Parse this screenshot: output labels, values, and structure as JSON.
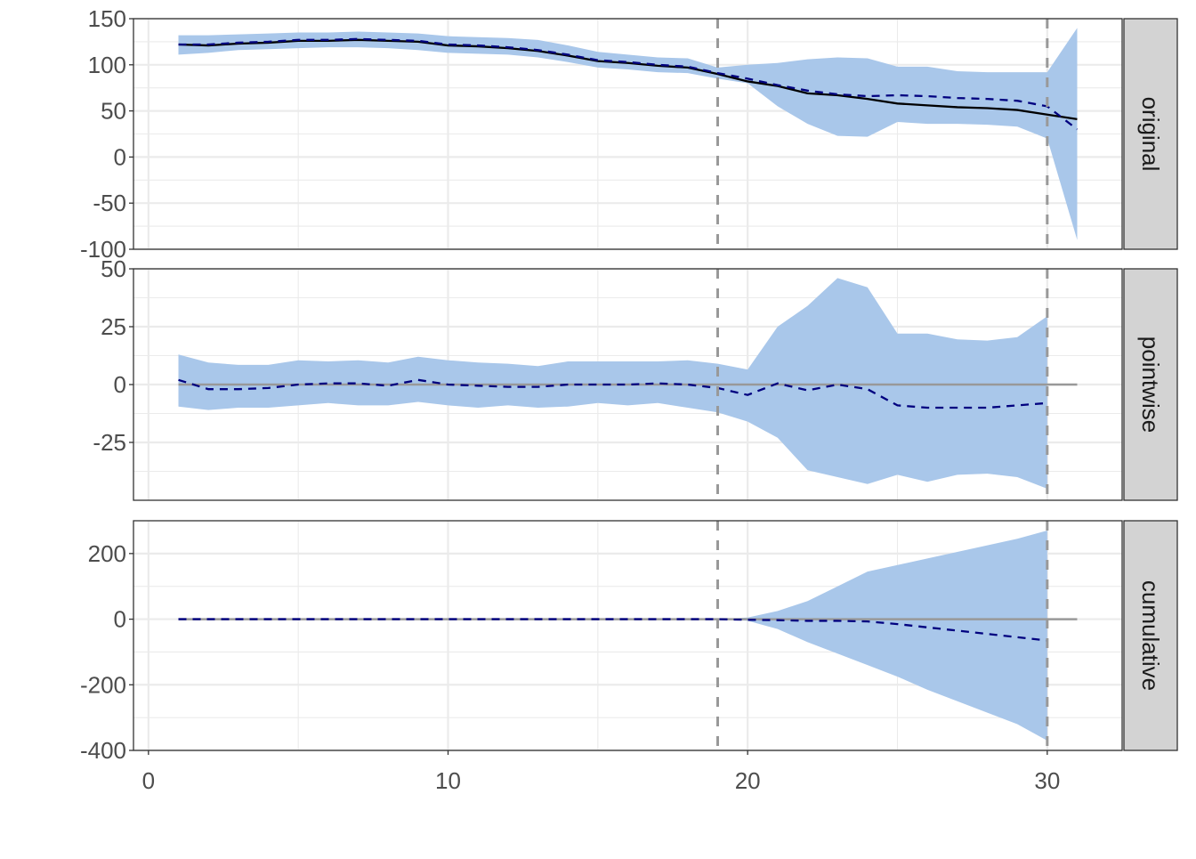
{
  "chart_data": [
    {
      "type": "line",
      "panel": "original",
      "ylim": [
        -100,
        150
      ],
      "yticks": [
        -100,
        -50,
        0,
        50,
        100,
        150
      ],
      "x": [
        1,
        2,
        3,
        4,
        5,
        6,
        7,
        8,
        9,
        10,
        11,
        12,
        13,
        14,
        15,
        16,
        17,
        18,
        19,
        20,
        21,
        22,
        23,
        24,
        25,
        26,
        27,
        28,
        29,
        30,
        31
      ],
      "observed": [
        122,
        121,
        123,
        124,
        126,
        126,
        127,
        126,
        125,
        121,
        120,
        118,
        115,
        110,
        104,
        102,
        99,
        97,
        90,
        82,
        77,
        69,
        67,
        63,
        58,
        56,
        54,
        53,
        51,
        46,
        41
      ],
      "predicted": [
        122,
        122,
        124,
        125,
        127,
        127,
        128,
        127,
        126,
        122,
        121,
        119,
        116,
        111,
        105,
        103,
        100,
        98,
        91,
        85,
        78,
        72,
        68,
        66,
        67,
        66,
        64,
        63,
        61,
        55,
        30
      ],
      "upper": [
        132,
        132,
        133,
        134,
        135,
        135,
        136,
        135,
        134,
        131,
        130,
        129,
        127,
        121,
        114,
        111,
        108,
        107,
        97,
        100,
        102,
        106,
        108,
        107,
        98,
        98,
        93,
        92,
        92,
        92,
        140
      ],
      "lower": [
        111,
        113,
        116,
        117,
        118,
        119,
        119,
        118,
        116,
        113,
        112,
        111,
        108,
        103,
        97,
        95,
        92,
        91,
        85,
        80,
        55,
        36,
        23,
        22,
        38,
        36,
        36,
        35,
        33,
        20,
        -90
      ]
    },
    {
      "type": "line",
      "panel": "pointwise",
      "ylim": [
        -50,
        50
      ],
      "yticks": [
        -25,
        0,
        25,
        50
      ],
      "x": [
        1,
        2,
        3,
        4,
        5,
        6,
        7,
        8,
        9,
        10,
        11,
        12,
        13,
        14,
        15,
        16,
        17,
        18,
        19,
        20,
        21,
        22,
        23,
        24,
        25,
        26,
        27,
        28,
        29,
        30
      ],
      "mean": [
        2,
        -2,
        -2,
        -1.5,
        0,
        0.5,
        0.5,
        -0.5,
        2,
        0,
        -0.5,
        -1,
        -1,
        0,
        0,
        0,
        0.5,
        0,
        -1.5,
        -4.5,
        0.5,
        -2.5,
        0,
        -2,
        -9,
        -10,
        -10,
        -10,
        -9,
        -8
      ],
      "upper": [
        13,
        9.5,
        8.5,
        8.5,
        10.5,
        10,
        10.5,
        9.5,
        12,
        10.5,
        9.5,
        9,
        8,
        10,
        10,
        10,
        10,
        10.5,
        9,
        6.5,
        25,
        34,
        46,
        42,
        22,
        22,
        19.5,
        19,
        20.5,
        29.5
      ],
      "lower": [
        -9.5,
        -11,
        -10,
        -10,
        -9,
        -8,
        -9,
        -9,
        -7.5,
        -9,
        -10,
        -9,
        -10,
        -9.5,
        -8,
        -9,
        -8,
        -10,
        -12,
        -16,
        -23,
        -37,
        -40,
        -43,
        -39,
        -42,
        -39,
        -38.5,
        -40,
        -45
      ],
      "reference_line": 0
    },
    {
      "type": "line",
      "panel": "cumulative",
      "ylim": [
        -400,
        300
      ],
      "yticks": [
        -400,
        -200,
        0,
        200
      ],
      "x": [
        1,
        2,
        3,
        4,
        5,
        6,
        7,
        8,
        9,
        10,
        11,
        12,
        13,
        14,
        15,
        16,
        17,
        18,
        19,
        20,
        21,
        22,
        23,
        24,
        25,
        26,
        27,
        28,
        29,
        30
      ],
      "mean": [
        0,
        0,
        0,
        0,
        0,
        0,
        0,
        0,
        0,
        0,
        0,
        0,
        0,
        0,
        0,
        0,
        0,
        0,
        0,
        -2,
        -3,
        -5,
        -5,
        -7,
        -15,
        -25,
        -35,
        -45,
        -55,
        -65
      ],
      "upper": [
        0,
        0,
        0,
        0,
        0,
        0,
        0,
        0,
        0,
        0,
        0,
        0,
        0,
        0,
        0,
        0,
        0,
        0,
        0,
        5,
        25,
        55,
        100,
        145,
        165,
        185,
        205,
        225,
        245,
        270
      ],
      "lower": [
        0,
        0,
        0,
        0,
        0,
        0,
        0,
        0,
        0,
        0,
        0,
        0,
        0,
        0,
        0,
        0,
        0,
        0,
        0,
        -5,
        -30,
        -70,
        -105,
        -140,
        -175,
        -215,
        -250,
        -285,
        -320,
        -370
      ],
      "reference_line": 0
    }
  ],
  "xaxis": {
    "xlim": [
      -0.5,
      32.5
    ],
    "ticks": [
      0,
      10,
      20,
      30
    ]
  },
  "vlines": [
    19,
    30
  ],
  "strips": [
    "original",
    "pointwise",
    "cumulative"
  ],
  "colors": {
    "band": "#A9C7EA",
    "predicted": "#00007F",
    "observed": "#000000",
    "vline": "#999999",
    "grid": "#EBEBEB",
    "strip": "#D3D3D3"
  }
}
